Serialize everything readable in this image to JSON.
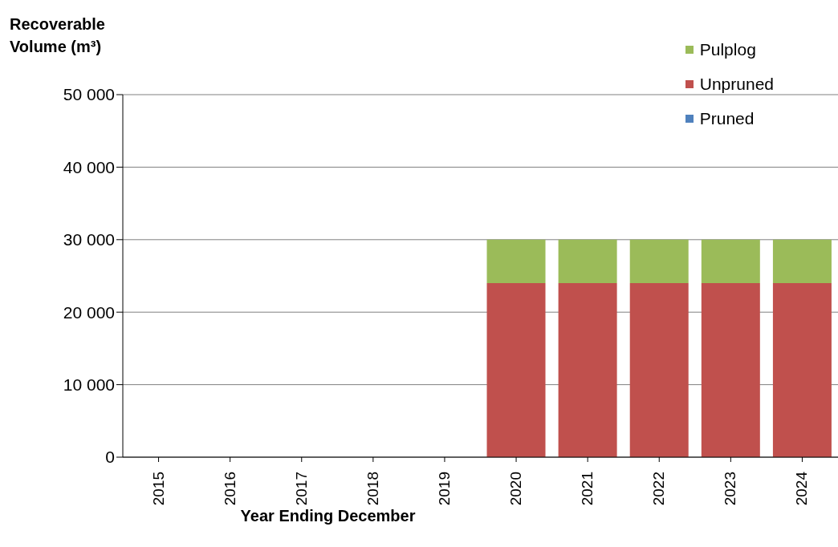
{
  "chart_data": {
    "type": "bar",
    "stacked": true,
    "ylabel": "Recoverable Volume (m³)",
    "xlabel": "Year Ending December",
    "categories": [
      "2015",
      "2016",
      "2017",
      "2018",
      "2019",
      "2020",
      "2021",
      "2022",
      "2023",
      "2024"
    ],
    "series": [
      {
        "name": "Pruned",
        "color": "#4f81bd",
        "values": [
          0,
          0,
          0,
          0,
          0,
          0,
          0,
          0,
          0,
          0
        ]
      },
      {
        "name": "Unpruned",
        "color": "#c0504d",
        "values": [
          0,
          0,
          0,
          0,
          0,
          24000,
          24000,
          24000,
          24000,
          24000
        ]
      },
      {
        "name": "Pulplog",
        "color": "#9bbb59",
        "values": [
          0,
          0,
          0,
          0,
          0,
          6000,
          6000,
          6000,
          6000,
          6000
        ]
      }
    ],
    "ylim": [
      0,
      50000
    ],
    "yticks": [
      {
        "value": 0,
        "label": "0"
      },
      {
        "value": 10000,
        "label": "10 000"
      },
      {
        "value": 20000,
        "label": "20 000"
      },
      {
        "value": 30000,
        "label": "30 000"
      },
      {
        "value": 40000,
        "label": "40 000"
      },
      {
        "value": 50000,
        "label": "50 000"
      }
    ],
    "grid": "y",
    "legend": "top right"
  }
}
